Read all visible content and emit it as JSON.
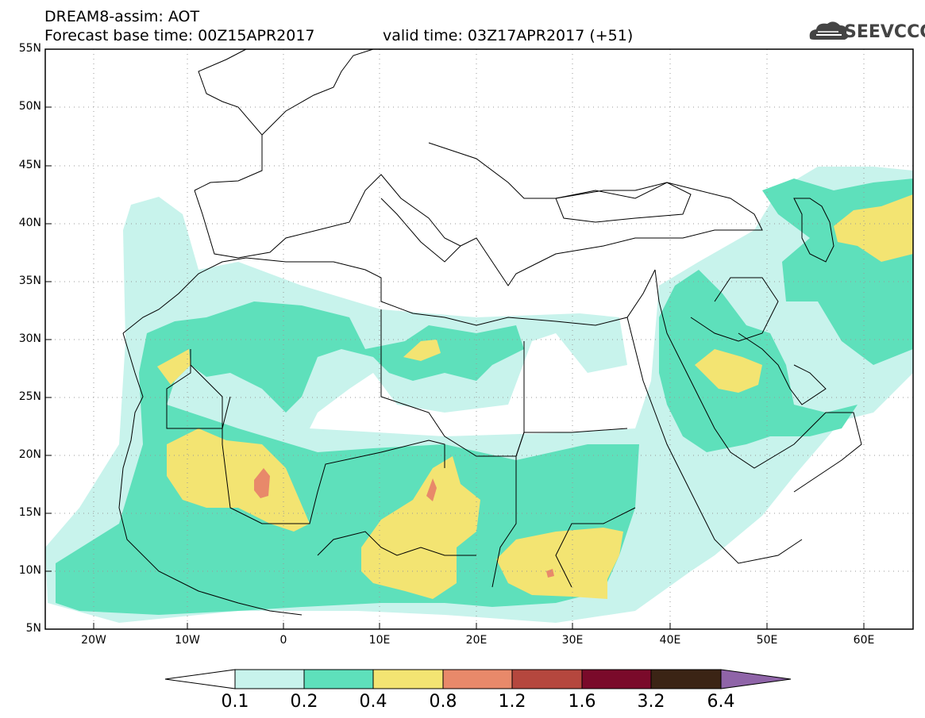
{
  "header": {
    "title": "DREAM8-assim: AOT",
    "base_time": "Forecast base time: 00Z15APR2017",
    "valid_time": "valid time: 03Z17APR2017 (+51)"
  },
  "logo": {
    "text": "SEEVCCC",
    "icon": "cloud-logo-icon"
  },
  "map": {
    "lat_labels": [
      "55N",
      "50N",
      "45N",
      "40N",
      "35N",
      "30N",
      "25N",
      "20N",
      "15N",
      "10N",
      "5N"
    ],
    "lon_labels": [
      "20W",
      "10W",
      "0",
      "10E",
      "20E",
      "30E",
      "40E",
      "50E",
      "60E"
    ],
    "lat_range": [
      5,
      55
    ],
    "lon_range": [
      -25,
      65
    ],
    "grid": true
  },
  "colorbar": {
    "levels": [
      "0.1",
      "0.2",
      "0.4",
      "0.8",
      "1.2",
      "1.6",
      "3.2",
      "6.4"
    ],
    "colors": [
      "#ffffff",
      "#c8f3ec",
      "#5ee0bb",
      "#f3e472",
      "#e8896a",
      "#b5473e",
      "#7a0a2a",
      "#3b2415",
      "#8f64a8"
    ]
  },
  "colors": {
    "c1": "#c8f3ec",
    "c2": "#5ee0bb",
    "c3": "#f3e472",
    "c4": "#e8896a"
  }
}
